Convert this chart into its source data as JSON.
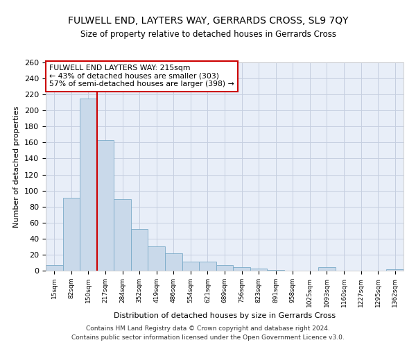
{
  "title": "FULWELL END, LAYTERS WAY, GERRARDS CROSS, SL9 7QY",
  "subtitle": "Size of property relative to detached houses in Gerrards Cross",
  "xlabel": "Distribution of detached houses by size in Gerrards Cross",
  "ylabel": "Number of detached properties",
  "bar_values": [
    7,
    91,
    215,
    163,
    89,
    52,
    30,
    22,
    11,
    11,
    7,
    4,
    3,
    1,
    0,
    0,
    4,
    0,
    0,
    0,
    2
  ],
  "bar_labels": [
    "15sqm",
    "82sqm",
    "150sqm",
    "217sqm",
    "284sqm",
    "352sqm",
    "419sqm",
    "486sqm",
    "554sqm",
    "621sqm",
    "689sqm",
    "756sqm",
    "823sqm",
    "891sqm",
    "958sqm",
    "1025sqm",
    "1093sqm",
    "1160sqm",
    "1227sqm",
    "1295sqm",
    "1362sqm"
  ],
  "bar_color": "#c9d9ea",
  "bar_edge_color": "#7aaac8",
  "grid_color": "#c5cfe0",
  "background_color": "#e8eef8",
  "red_line_x": 3,
  "annotation_text": "FULWELL END LAYTERS WAY: 215sqm\n← 43% of detached houses are smaller (303)\n57% of semi-detached houses are larger (398) →",
  "annotation_box_color": "white",
  "annotation_border_color": "#cc0000",
  "ylim": [
    0,
    260
  ],
  "yticks": [
    0,
    20,
    40,
    60,
    80,
    100,
    120,
    140,
    160,
    180,
    200,
    220,
    240,
    260
  ],
  "footnote1": "Contains HM Land Registry data © Crown copyright and database right 2024.",
  "footnote2": "Contains public sector information licensed under the Open Government Licence v3.0."
}
